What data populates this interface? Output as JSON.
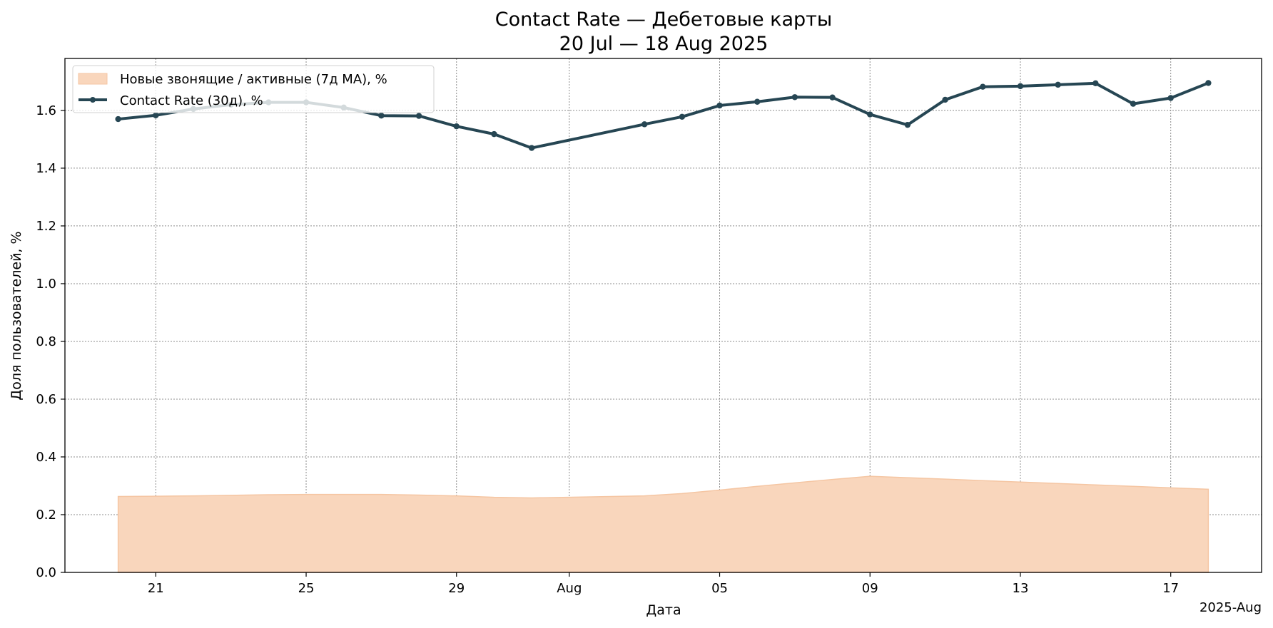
{
  "chart_data": {
    "type": "line",
    "title": "Contact Rate — Дебетовые карты",
    "subtitle": "20 Jul — 18 Aug 2025",
    "xlabel": "Дата",
    "ylabel": "Доля пользователей, %",
    "x_offset_label": "2025-Aug",
    "ylim": [
      0,
      1.78
    ],
    "xlim": [
      "2025-07-18 14:00",
      "2025-08-19 10:00"
    ],
    "grid": true,
    "legend_position": "top-left",
    "x_ticks": [
      {
        "date": "2025-07-21",
        "label": "21"
      },
      {
        "date": "2025-07-25",
        "label": "25"
      },
      {
        "date": "2025-07-29",
        "label": "29"
      },
      {
        "date": "2025-08-01",
        "label": "Aug"
      },
      {
        "date": "2025-08-05",
        "label": "05"
      },
      {
        "date": "2025-08-09",
        "label": "09"
      },
      {
        "date": "2025-08-13",
        "label": "13"
      },
      {
        "date": "2025-08-17",
        "label": "17"
      }
    ],
    "y_ticks": [
      "0.0",
      "0.2",
      "0.4",
      "0.6",
      "0.8",
      "1.0",
      "1.2",
      "1.4",
      "1.6"
    ],
    "series": [
      {
        "name": "Новые звонящие / активные (7д MA), %",
        "type": "area",
        "color": "#f9d6bc",
        "edge_color": "#f5c6a3",
        "points": [
          {
            "date": "2025-07-20",
            "value": 0.263
          },
          {
            "date": "2025-07-21",
            "value": 0.264
          },
          {
            "date": "2025-07-22",
            "value": 0.265
          },
          {
            "date": "2025-07-23",
            "value": 0.267
          },
          {
            "date": "2025-07-24",
            "value": 0.269
          },
          {
            "date": "2025-07-25",
            "value": 0.27
          },
          {
            "date": "2025-07-26",
            "value": 0.27
          },
          {
            "date": "2025-07-27",
            "value": 0.27
          },
          {
            "date": "2025-07-28",
            "value": 0.268
          },
          {
            "date": "2025-07-29",
            "value": 0.265
          },
          {
            "date": "2025-07-30",
            "value": 0.26
          },
          {
            "date": "2025-07-31",
            "value": 0.258
          },
          {
            "date": "2025-08-03",
            "value": 0.265
          },
          {
            "date": "2025-08-04",
            "value": 0.273
          },
          {
            "date": "2025-08-05",
            "value": 0.285
          },
          {
            "date": "2025-08-06",
            "value": 0.298
          },
          {
            "date": "2025-08-07",
            "value": 0.31
          },
          {
            "date": "2025-08-08",
            "value": 0.322
          },
          {
            "date": "2025-08-09",
            "value": 0.333
          },
          {
            "date": "2025-08-10",
            "value": 0.328
          },
          {
            "date": "2025-08-11",
            "value": 0.323
          },
          {
            "date": "2025-08-12",
            "value": 0.318
          },
          {
            "date": "2025-08-13",
            "value": 0.313
          },
          {
            "date": "2025-08-14",
            "value": 0.308
          },
          {
            "date": "2025-08-15",
            "value": 0.303
          },
          {
            "date": "2025-08-16",
            "value": 0.298
          },
          {
            "date": "2025-08-17",
            "value": 0.293
          },
          {
            "date": "2025-08-18",
            "value": 0.288
          }
        ]
      },
      {
        "name": "Contact Rate (30д), %",
        "type": "line",
        "color": "#264653",
        "points": [
          {
            "date": "2025-07-20",
            "value": 1.57
          },
          {
            "date": "2025-07-21",
            "value": 1.583
          },
          {
            "date": "2025-07-22",
            "value": 1.605
          },
          {
            "date": "2025-07-23",
            "value": 1.62
          },
          {
            "date": "2025-07-24",
            "value": 1.628
          },
          {
            "date": "2025-07-25",
            "value": 1.628
          },
          {
            "date": "2025-07-26",
            "value": 1.61
          },
          {
            "date": "2025-07-27",
            "value": 1.582
          },
          {
            "date": "2025-07-28",
            "value": 1.581
          },
          {
            "date": "2025-07-29",
            "value": 1.545
          },
          {
            "date": "2025-07-30",
            "value": 1.518
          },
          {
            "date": "2025-07-31",
            "value": 1.47
          },
          {
            "date": "2025-08-03",
            "value": 1.552
          },
          {
            "date": "2025-08-04",
            "value": 1.578
          },
          {
            "date": "2025-08-05",
            "value": 1.617
          },
          {
            "date": "2025-08-06",
            "value": 1.63
          },
          {
            "date": "2025-08-07",
            "value": 1.646
          },
          {
            "date": "2025-08-08",
            "value": 1.645
          },
          {
            "date": "2025-08-09",
            "value": 1.586
          },
          {
            "date": "2025-08-10",
            "value": 1.55
          },
          {
            "date": "2025-08-11",
            "value": 1.637
          },
          {
            "date": "2025-08-12",
            "value": 1.682
          },
          {
            "date": "2025-08-13",
            "value": 1.684
          },
          {
            "date": "2025-08-14",
            "value": 1.689
          },
          {
            "date": "2025-08-15",
            "value": 1.694
          },
          {
            "date": "2025-08-16",
            "value": 1.623
          },
          {
            "date": "2025-08-17",
            "value": 1.643
          },
          {
            "date": "2025-08-18",
            "value": 1.695
          }
        ]
      }
    ]
  }
}
